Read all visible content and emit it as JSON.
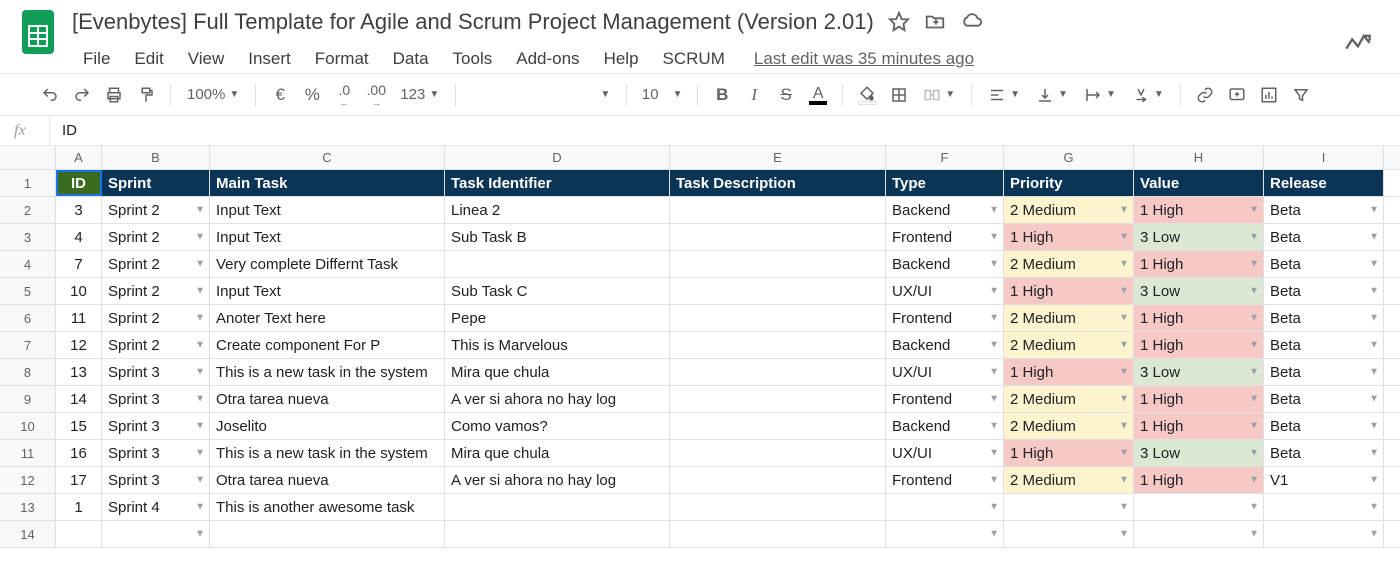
{
  "doc": {
    "title": "[Evenbytes] Full Template for Agile and Scrum Project Management (Version 2.01)",
    "last_edit": "Last edit was 35 minutes ago"
  },
  "menu": {
    "file": "File",
    "edit": "Edit",
    "view": "View",
    "insert": "Insert",
    "format": "Format",
    "data": "Data",
    "tools": "Tools",
    "addons": "Add-ons",
    "help": "Help",
    "scrum": "SCRUM"
  },
  "toolbar": {
    "zoom": "100%",
    "currency_symbol": "€",
    "percent": "%",
    "dec_less": ".0",
    "dec_more": ".00",
    "more_formats": "123",
    "font_size": "10"
  },
  "formula": {
    "fx": "fx",
    "value": "ID"
  },
  "columns": {
    "letters": [
      "A",
      "B",
      "C",
      "D",
      "E",
      "F",
      "G",
      "H",
      "I"
    ],
    "widths": [
      "c-A",
      "c-B",
      "c-C",
      "c-D",
      "c-E",
      "c-F",
      "c-G",
      "c-H",
      "c-I"
    ]
  },
  "header_row": {
    "A": "ID",
    "B": "Sprint",
    "C": "Main Task",
    "D": "Task Identifier",
    "E": "Task Description",
    "F": "Type",
    "G": "Priority",
    "H": "Value",
    "I": "Release"
  },
  "row_numbers": [
    "1",
    "2",
    "3",
    "4",
    "5",
    "6",
    "7",
    "8",
    "9",
    "10",
    "11",
    "12",
    "13",
    "14"
  ],
  "priority_colors": {
    "1 High": "bg-red",
    "2 Medium": "bg-yellow"
  },
  "value_colors": {
    "1 High": "bg-red",
    "3 Low": "bg-green"
  },
  "rows": [
    {
      "id": "3",
      "sprint": "Sprint 2",
      "main": "Input Text",
      "tid": "Linea 2",
      "desc": "",
      "type": "Backend",
      "priority": "2 Medium",
      "value": "1 High",
      "release": "Beta"
    },
    {
      "id": "4",
      "sprint": "Sprint 2",
      "main": "Input Text",
      "tid": "Sub Task B",
      "desc": "",
      "type": "Frontend",
      "priority": "1 High",
      "value": "3 Low",
      "release": "Beta"
    },
    {
      "id": "7",
      "sprint": "Sprint 2",
      "main": "Very complete Differnt Task",
      "tid": "",
      "desc": "",
      "type": "Backend",
      "priority": "2 Medium",
      "value": "1 High",
      "release": "Beta"
    },
    {
      "id": "10",
      "sprint": "Sprint 2",
      "main": "Input Text",
      "tid": "Sub Task C",
      "desc": "",
      "type": "UX/UI",
      "priority": "1 High",
      "value": "3 Low",
      "release": "Beta"
    },
    {
      "id": "11",
      "sprint": "Sprint 2",
      "main": "Anoter Text here",
      "tid": "Pepe",
      "desc": "",
      "type": "Frontend",
      "priority": "2 Medium",
      "value": "1 High",
      "release": "Beta"
    },
    {
      "id": "12",
      "sprint": "Sprint 2",
      "main": "Create component For P",
      "tid": "This is Marvelous",
      "desc": "",
      "type": "Backend",
      "priority": "2 Medium",
      "value": "1 High",
      "release": "Beta"
    },
    {
      "id": "13",
      "sprint": "Sprint 3",
      "main": "This is a new task in the system",
      "tid": "Mira que chula",
      "desc": "",
      "type": "UX/UI",
      "priority": "1 High",
      "value": "3 Low",
      "release": "Beta"
    },
    {
      "id": "14",
      "sprint": "Sprint 3",
      "main": "Otra tarea nueva",
      "tid": "A ver si ahora no hay log",
      "desc": "",
      "type": "Frontend",
      "priority": "2 Medium",
      "value": "1 High",
      "release": "Beta"
    },
    {
      "id": "15",
      "sprint": "Sprint 3",
      "main": "Joselito",
      "tid": "Como vamos?",
      "desc": "",
      "type": "Backend",
      "priority": "2 Medium",
      "value": "1 High",
      "release": "Beta"
    },
    {
      "id": "16",
      "sprint": "Sprint 3",
      "main": "This is a new task in the system",
      "tid": "Mira que chula",
      "desc": "",
      "type": "UX/UI",
      "priority": "1 High",
      "value": "3 Low",
      "release": "Beta"
    },
    {
      "id": "17",
      "sprint": "Sprint 3",
      "main": "Otra tarea nueva",
      "tid": "A ver si ahora no hay log",
      "desc": "",
      "type": "Frontend",
      "priority": "2 Medium",
      "value": "1 High",
      "release": "V1"
    },
    {
      "id": "1",
      "sprint": "Sprint 4",
      "main": "This is another awesome task",
      "tid": "",
      "desc": "",
      "type": "",
      "priority": "",
      "value": "",
      "release": ""
    },
    {
      "id": "",
      "sprint": "",
      "main": "",
      "tid": "",
      "desc": "",
      "type": "",
      "priority": "",
      "value": "",
      "release": ""
    }
  ]
}
